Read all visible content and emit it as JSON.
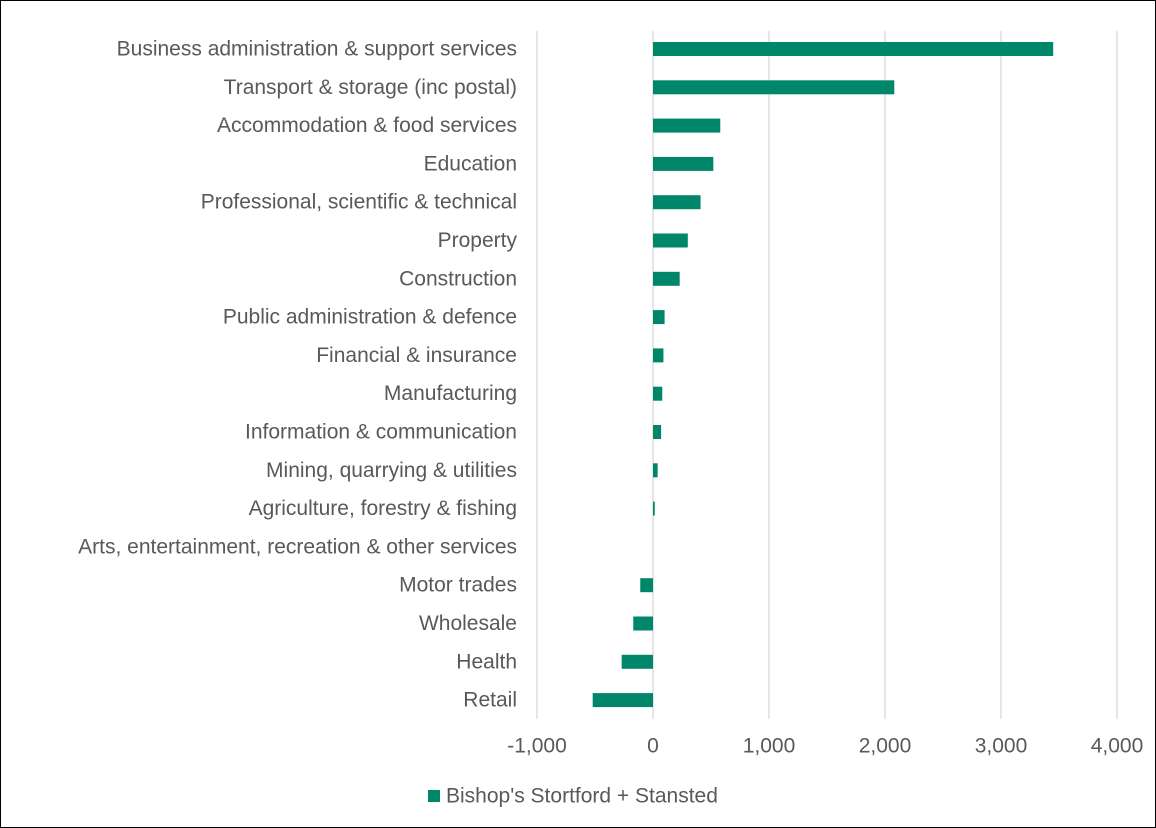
{
  "chart_data": {
    "type": "bar",
    "orientation": "horizontal",
    "categories": [
      "Business administration & support services",
      "Transport & storage (inc postal)",
      "Accommodation & food services",
      "Education",
      "Professional, scientific & technical",
      "Property",
      "Construction",
      "Public administration & defence",
      "Financial & insurance",
      "Manufacturing",
      "Information & communication",
      "Mining, quarrying & utilities",
      "Agriculture, forestry & fishing",
      "Arts, entertainment, recreation & other services",
      "Motor trades",
      "Wholesale",
      "Health",
      "Retail"
    ],
    "series": [
      {
        "name": "Bishop's Stortford + Stansted",
        "color": "#00876a",
        "values": [
          3450,
          2080,
          580,
          520,
          410,
          300,
          230,
          100,
          90,
          80,
          70,
          40,
          15,
          0,
          -110,
          -170,
          -270,
          -520
        ]
      }
    ],
    "xlim": [
      -1000,
      4000
    ],
    "xticks": [
      -1000,
      0,
      1000,
      2000,
      3000,
      4000
    ],
    "xtick_labels": [
      "-1,000",
      "0",
      "1,000",
      "2,000",
      "3,000",
      "4,000"
    ],
    "grid": "vertical",
    "legend": "bottom-center",
    "title": "",
    "xlabel": "",
    "ylabel": ""
  }
}
